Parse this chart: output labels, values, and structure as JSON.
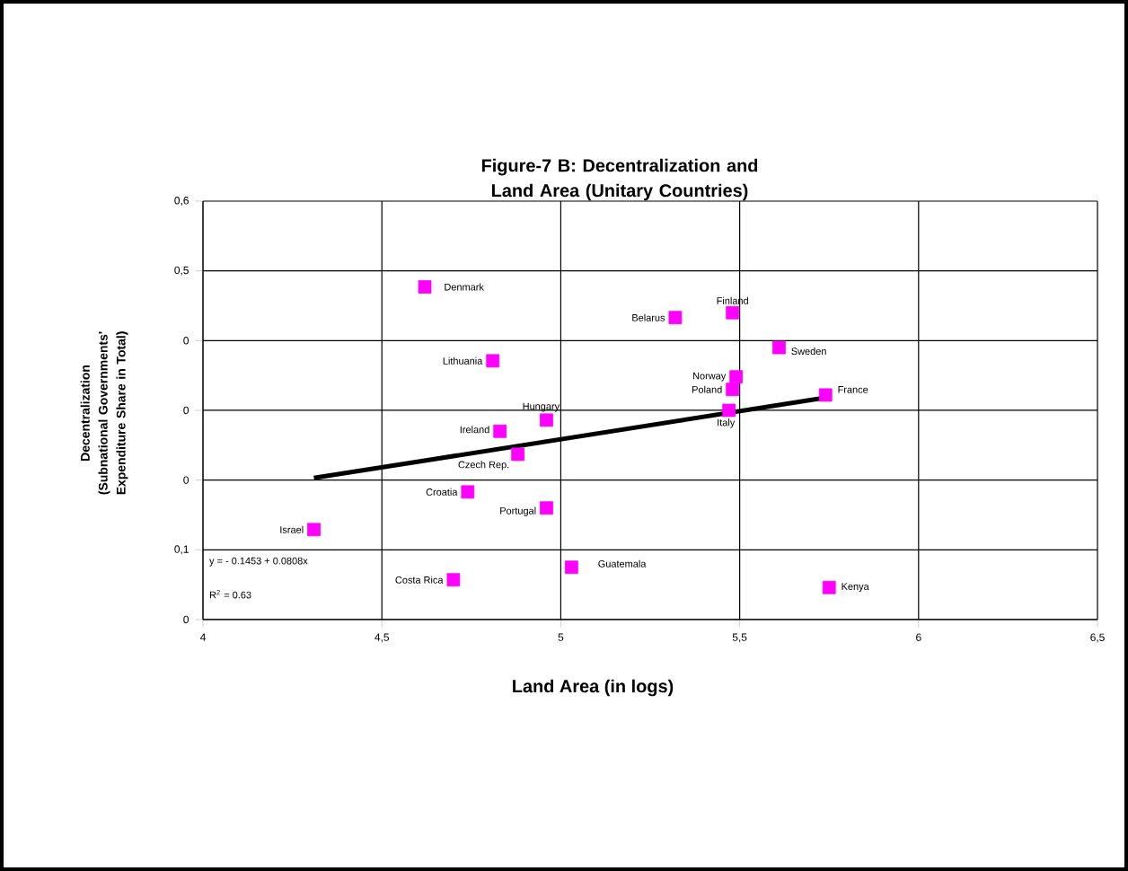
{
  "chart_data": {
    "type": "scatter",
    "title": "Figure-7 B: Decentralization and Land Area (Unitary Countries)",
    "xlabel": "Land Area (in logs)",
    "ylabel": "Decentralization (Subnational Governments' Expenditure Share in Total)",
    "xlim": [
      4,
      6.5
    ],
    "ylim": [
      0,
      0.6
    ],
    "xticks": [
      4,
      {
        "value": 4.5,
        "label": "4,5"
      },
      5,
      {
        "value": 5.5,
        "label": "5,5"
      },
      6,
      {
        "value": 6.5,
        "label": "6,5"
      }
    ],
    "yticks": [
      0,
      {
        "value": 0.1,
        "label": "0,1"
      },
      {
        "value": 0.2,
        "label": "0"
      },
      {
        "value": 0.3,
        "label": "0"
      },
      {
        "value": 0.4,
        "label": "0"
      },
      {
        "value": 0.5,
        "label": "0,5"
      },
      {
        "value": 0.6,
        "label": "0,6"
      }
    ],
    "grid": true,
    "marker": "square",
    "series": [
      {
        "type": "scatter",
        "color": "#ff00ff",
        "x": [
          4.62,
          5.48,
          5.32,
          5.61,
          5.49,
          5.48,
          5.47,
          5.74,
          5.75,
          5.03,
          4.96,
          4.96,
          4.83,
          4.88,
          4.81,
          4.74,
          4.31,
          4.7
        ],
        "values": [
          0.477,
          0.44,
          0.433,
          0.39,
          0.348,
          0.33,
          0.3,
          0.322,
          0.046,
          0.075,
          0.16,
          0.286,
          0.27,
          0.237,
          0.371,
          0.183,
          0.129,
          0.057
        ]
      },
      {
        "type": "line",
        "color": "#000000",
        "marker": "none",
        "x": [
          4.31,
          5.75
        ],
        "values": [
          0.203,
          0.319
        ]
      }
    ],
    "annotations": [
      {
        "text": "Denmark",
        "x": 4.62,
        "y": 0.477
      },
      {
        "text": "Finland",
        "x": 5.48,
        "y": 0.44
      },
      {
        "text": "Belarus",
        "x": 5.32,
        "y": 0.433
      },
      {
        "text": "Sweden",
        "x": 5.61,
        "y": 0.39
      },
      {
        "text": "Norway",
        "x": 5.49,
        "y": 0.348
      },
      {
        "text": "Poland",
        "x": 5.48,
        "y": 0.33
      },
      {
        "text": "Italy",
        "x": 5.47,
        "y": 0.3
      },
      {
        "text": "France",
        "x": 5.74,
        "y": 0.322
      },
      {
        "text": "Kenya",
        "x": 5.75,
        "y": 0.046
      },
      {
        "text": "Guatemala",
        "x": 5.03,
        "y": 0.075
      },
      {
        "text": "Portugal",
        "x": 4.96,
        "y": 0.16
      },
      {
        "text": "Hungary",
        "x": 4.96,
        "y": 0.286
      },
      {
        "text": "Ireland",
        "x": 4.83,
        "y": 0.27
      },
      {
        "text": "Czech Rep.",
        "x": 4.88,
        "y": 0.237
      },
      {
        "text": "Lithuania",
        "x": 4.81,
        "y": 0.371
      },
      {
        "text": "Croatia",
        "x": 4.74,
        "y": 0.183
      },
      {
        "text": "Israel",
        "x": 4.31,
        "y": 0.129
      },
      {
        "text": "Costa Rica",
        "x": 4.7,
        "y": 0.057
      },
      "y = - 0.1453 + 0.0808x",
      "R$^{2}$ = 0.63"
    ]
  }
}
